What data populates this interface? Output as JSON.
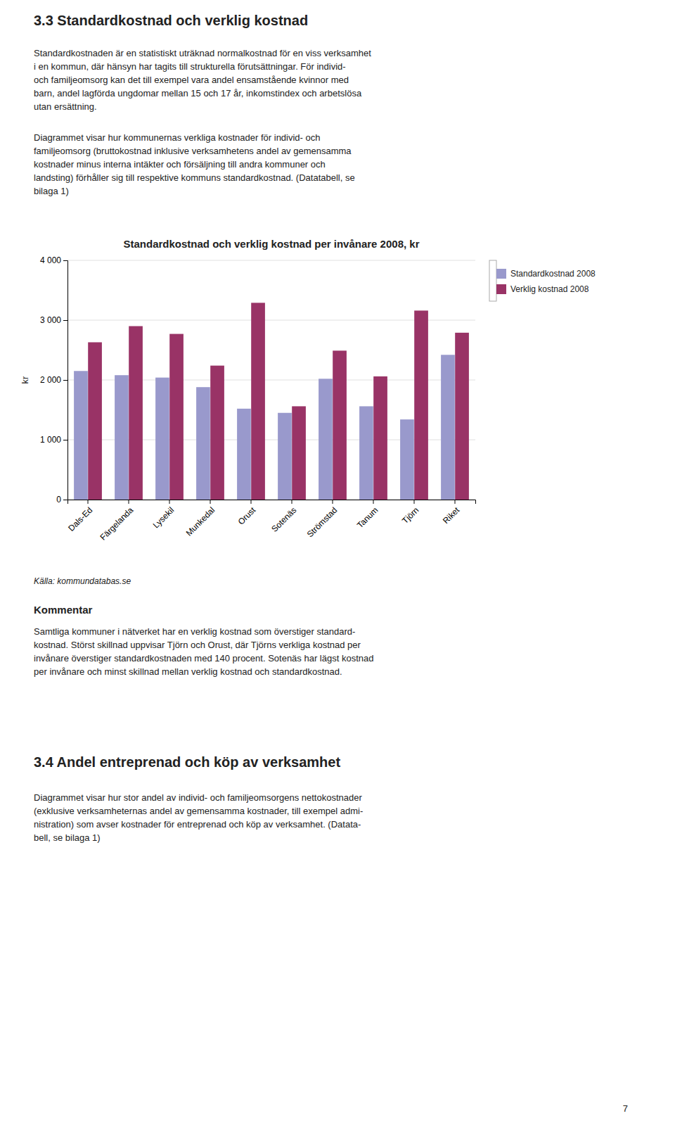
{
  "chart_data": {
    "type": "bar",
    "title": "Standardkostnad och verklig kostnad per invånare 2008, kr",
    "ylabel": "kr",
    "categories": [
      "Dals-Ed",
      "Färgelanda",
      "Lysekil",
      "Munkedal",
      "Orust",
      "Sotenäs",
      "Strömstad",
      "Tanum",
      "Tjörn",
      "Riket"
    ],
    "series": [
      {
        "name": "Standardkostnad 2008",
        "color": "#9999CC",
        "values": [
          2150,
          2080,
          2040,
          1880,
          1520,
          1450,
          2020,
          1560,
          1340,
          2420
        ]
      },
      {
        "name": "Verklig kostnad 2008",
        "color": "#993366",
        "values": [
          2630,
          2900,
          2770,
          2240,
          3290,
          1560,
          2490,
          2060,
          3160,
          2790
        ]
      }
    ],
    "ylim": [
      0,
      4000
    ],
    "yticks": [
      0,
      {
        "value": 1000,
        "label": "1 000"
      },
      {
        "value": 2000,
        "label": "2 000"
      },
      {
        "value": 3000,
        "label": "3 000"
      },
      {
        "value": 4000,
        "label": "4 000"
      }
    ],
    "grid": true,
    "legend": "right"
  },
  "page": {
    "heading1": "3.3 Standardkostnad och verklig kostnad",
    "body1": "Standardkostnaden är en statistiskt uträknad normalkostnad för en viss verksamhet\ni en kommun, där hänsyn har tagits till strukturella förutsättningar. För individ-\noch familjeomsorg kan det till exempel vara andel ensamstående kvinnor med\nbarn, andel lagförda ungdomar mellan 15 och 17 år, inkomstindex och arbetslösa\nutan ersättning.",
    "body2": "Diagrammet visar hur kommunernas verkliga kostnader för individ- och\nfamiljeomsorg (bruttokostnad inklusive verksamhetens andel av gemensamma\nkostnader minus interna intäkter och försäljning till andra kommuner och\nlandsting) förhåller sig till respektive kommuns standardkostnad. (Datatabell, se\nbilaga 1)",
    "source": "Källa: kommundatabas.se",
    "kommentar_heading": "Kommentar",
    "kommentar_body": "Samtliga kommuner i nätverket har en verklig kostnad som överstiger standard-\nkostnad. Störst skillnad uppvisar Tjörn och Orust, där Tjörns verkliga kostnad per\ninvånare överstiger standardkostnaden med 140 procent. Sotenäs har lägst kostnad\nper invånare och minst skillnad mellan verklig kostnad och standardkostnad.",
    "heading2": "3.4 Andel entreprenad och köp av verksamhet",
    "body3": "Diagrammet visar hur stor andel av individ- och familjeomsorgens nettokostnader\n(exklusive verksamheternas andel av gemensamma kostnader, till exempel admi-\nnistration) som avser kostnader för entreprenad och köp av verksamhet. (Datata-\nbell, se bilaga 1)",
    "page_number": "7"
  }
}
